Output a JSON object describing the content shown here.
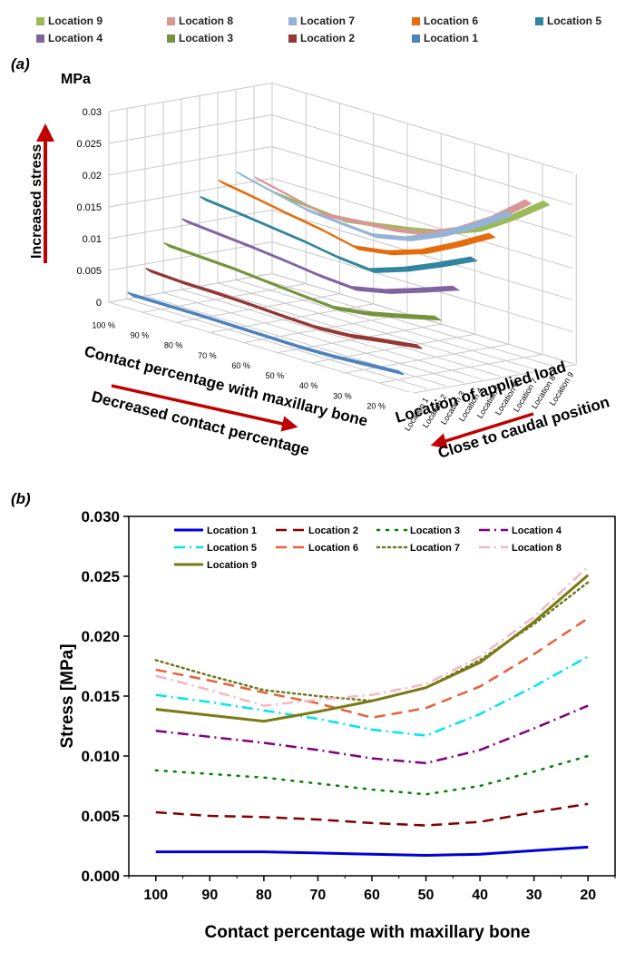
{
  "panel_a": {
    "label": "(a)",
    "unit": "MPa",
    "arrow_stress_label": "Increased stress",
    "arrow_contact_label": "Decreased contact percentage",
    "arrow_location_label": "Close to caudal position",
    "legend_entries": [
      {
        "name": "Location 9",
        "color": "#9bbb59"
      },
      {
        "name": "Location 8",
        "color": "#d99694"
      },
      {
        "name": "Location 7",
        "color": "#95b3d7"
      },
      {
        "name": "Location 6",
        "color": "#e46c0a"
      },
      {
        "name": "Location 5",
        "color": "#31859c"
      },
      {
        "name": "Location 4",
        "color": "#8064a2"
      },
      {
        "name": "Location 3",
        "color": "#77933c"
      },
      {
        "name": "Location 2",
        "color": "#953735"
      },
      {
        "name": "Location 1",
        "color": "#4f81bd"
      }
    ]
  },
  "panel_b": {
    "label": "(b)"
  },
  "chart_data": [
    {
      "type": "line",
      "title": "",
      "chart_kind": "3d-ribbon-line",
      "xlabel": "Contact percentage with maxillary bone",
      "ylabel": "Location of applied load",
      "zlabel": "MPa",
      "categories": [
        "100 %",
        "90 %",
        "80 %",
        "70 %",
        "60 %",
        "50 %",
        "40 %",
        "30 %",
        "20 %"
      ],
      "depth_categories": [
        "Location 1",
        "Location 2",
        "Location 3",
        "Location 4",
        "Location 5",
        "Location 6",
        "Location 7",
        "Location 8",
        "Location 9"
      ],
      "zlim": [
        0,
        0.03
      ],
      "z_ticks": [
        "0",
        "0.005",
        "0.01",
        "0.015",
        "0.02",
        "0.025",
        "0.03"
      ],
      "x": [
        100,
        90,
        80,
        70,
        60,
        50,
        40,
        30,
        20
      ],
      "series": [
        {
          "name": "Location 1",
          "color": "#4f81bd",
          "values": [
            0.002,
            0.002,
            0.002,
            0.0019,
            0.0018,
            0.0017,
            0.0018,
            0.0021,
            0.0024
          ]
        },
        {
          "name": "Location 2",
          "color": "#953735",
          "values": [
            0.0053,
            0.005,
            0.0049,
            0.0047,
            0.0044,
            0.0042,
            0.0045,
            0.0053,
            0.006
          ]
        },
        {
          "name": "Location 3",
          "color": "#77933c",
          "values": [
            0.0088,
            0.0085,
            0.0082,
            0.0077,
            0.0072,
            0.0068,
            0.0075,
            0.0087,
            0.01
          ]
        },
        {
          "name": "Location 4",
          "color": "#8064a2",
          "values": [
            0.0121,
            0.0116,
            0.0111,
            0.0105,
            0.0098,
            0.0094,
            0.0105,
            0.0123,
            0.0142
          ]
        },
        {
          "name": "Location 5",
          "color": "#31859c",
          "values": [
            0.0151,
            0.0145,
            0.0138,
            0.0131,
            0.0122,
            0.0117,
            0.0135,
            0.0158,
            0.0183
          ]
        },
        {
          "name": "Location 6",
          "color": "#e46c0a",
          "values": [
            0.0172,
            0.0163,
            0.0153,
            0.0144,
            0.0132,
            0.014,
            0.0158,
            0.0185,
            0.0215
          ]
        },
        {
          "name": "Location 7",
          "color": "#95b3d7",
          "values": [
            0.018,
            0.0167,
            0.0155,
            0.015,
            0.0146,
            0.0157,
            0.018,
            0.021,
            0.0245
          ]
        },
        {
          "name": "Location 8",
          "color": "#d99694",
          "values": [
            0.0167,
            0.0155,
            0.0142,
            0.0147,
            0.0151,
            0.016,
            0.0183,
            0.0216,
            0.0258
          ]
        },
        {
          "name": "Location 9",
          "color": "#9bbb59",
          "values": [
            0.0139,
            0.0134,
            0.0129,
            0.0137,
            0.0146,
            0.0157,
            0.0178,
            0.0212,
            0.0251
          ]
        }
      ]
    },
    {
      "type": "line",
      "title": "",
      "xlabel": "Contact percentage with maxillary bone",
      "ylabel": "Stress [MPa]",
      "ylim": [
        0,
        0.03
      ],
      "xlim": [
        105,
        15
      ],
      "x_ticks": [
        "100",
        "90",
        "80",
        "70",
        "60",
        "50",
        "40",
        "30",
        "20"
      ],
      "y_ticks": [
        "0.000",
        "0.005",
        "0.010",
        "0.015",
        "0.020",
        "0.025",
        "0.030"
      ],
      "grid": false,
      "legend": "top",
      "x": [
        100,
        90,
        80,
        70,
        60,
        50,
        40,
        30,
        20
      ],
      "series": [
        {
          "name": "Location 1",
          "color": "#0000dd",
          "style": "solid",
          "values": [
            0.002,
            0.002,
            0.002,
            0.0019,
            0.0018,
            0.0017,
            0.0018,
            0.0021,
            0.0024
          ]
        },
        {
          "name": "Location 2",
          "color": "#800000",
          "style": "dash",
          "values": [
            0.0053,
            0.005,
            0.0049,
            0.0047,
            0.0044,
            0.0042,
            0.0045,
            0.0053,
            0.006
          ]
        },
        {
          "name": "Location 3",
          "color": "#008000",
          "style": "dot",
          "values": [
            0.0088,
            0.0085,
            0.0082,
            0.0077,
            0.0072,
            0.0068,
            0.0075,
            0.0087,
            0.01
          ]
        },
        {
          "name": "Location 4",
          "color": "#800080",
          "style": "dashdot",
          "values": [
            0.0121,
            0.0116,
            0.0111,
            0.0105,
            0.0098,
            0.0094,
            0.0105,
            0.0123,
            0.0142
          ]
        },
        {
          "name": "Location 5",
          "color": "#00e5ee",
          "style": "dashdot",
          "values": [
            0.0151,
            0.0145,
            0.0138,
            0.0131,
            0.0122,
            0.0117,
            0.0135,
            0.0158,
            0.0183
          ]
        },
        {
          "name": "Location 6",
          "color": "#e8603c",
          "style": "dash",
          "values": [
            0.0172,
            0.0163,
            0.0153,
            0.0144,
            0.0132,
            0.014,
            0.0158,
            0.0185,
            0.0215
          ]
        },
        {
          "name": "Location 7",
          "color": "#6b7a1e",
          "style": "shortdot",
          "values": [
            0.018,
            0.0167,
            0.0155,
            0.015,
            0.0146,
            0.0157,
            0.018,
            0.021,
            0.0245
          ]
        },
        {
          "name": "Location 8",
          "color": "#f4b6c2",
          "style": "dashdot",
          "values": [
            0.0167,
            0.0155,
            0.0142,
            0.0147,
            0.0151,
            0.016,
            0.0183,
            0.0216,
            0.0258
          ]
        },
        {
          "name": "Location 9",
          "color": "#7a7a14",
          "style": "solid",
          "values": [
            0.0139,
            0.0134,
            0.0129,
            0.0137,
            0.0146,
            0.0157,
            0.0178,
            0.0212,
            0.0251
          ]
        }
      ]
    }
  ]
}
